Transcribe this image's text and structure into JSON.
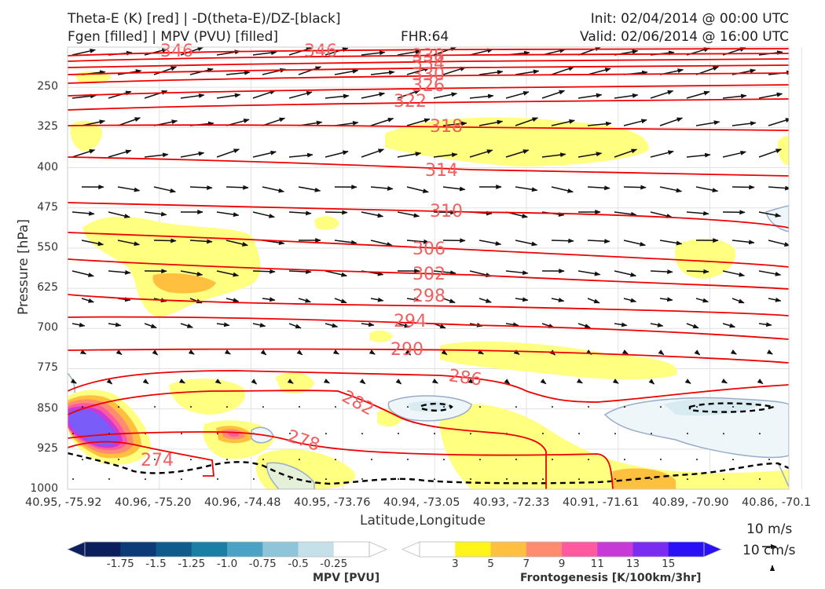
{
  "titles": {
    "left_line1": "Theta-E (K) [red] | -D(theta-E)/DZ-[black]",
    "left_line2": "Fgen [filled] | MPV (PVU) [filled]",
    "center": "FHR:64",
    "right_line1": "Init: 02/04/2014 @ 00:00 UTC",
    "right_line2": "Valid: 02/06/2014 @ 16:00 UTC"
  },
  "chart_data": {
    "type": "cross-section",
    "xlabel": "Latitude,Longitude",
    "ylabel": "Pressure [hPa]",
    "ylim": [
      1000,
      175
    ],
    "y_scale": "pressure (linear, inverted)",
    "y_ticks": [
      250,
      325,
      400,
      475,
      550,
      625,
      700,
      775,
      850,
      925,
      1000
    ],
    "y_tick_labels": [
      "250",
      "325",
      "400",
      "475",
      "550",
      "625",
      "700",
      "775",
      "850",
      "925",
      "1000"
    ],
    "x_tick_labels": [
      "40.95, -75.92",
      "40.96, -75.20",
      "40.96, -74.48",
      "40.95, -73.76",
      "40.94, -73.05",
      "40.93, -72.33",
      "40.91, -71.61",
      "40.89, -70.90",
      "40.86, -70.1"
    ],
    "grid": true,
    "theta_e_contours": {
      "color": "#ee0000",
      "labels": [
        "346",
        "346",
        "338",
        "334",
        "330",
        "326",
        "322",
        "318",
        "314",
        "310",
        "306",
        "302",
        "298",
        "294",
        "290",
        "286",
        "282",
        "278",
        "274"
      ],
      "label_values": [
        346,
        346,
        338,
        334,
        330,
        326,
        322,
        318,
        314,
        310,
        306,
        302,
        298,
        294,
        290,
        286,
        282,
        278,
        274
      ]
    },
    "mpv_colorbar": {
      "title": "MPV [PVU]",
      "tick_labels": [
        "-1.75",
        "-1.5",
        "-1.25",
        "-1.0",
        "-0.75",
        "-0.5",
        "-0.25"
      ],
      "colors": [
        "#0b1f5c",
        "#0d3b78",
        "#0f5c8c",
        "#1a7fa4",
        "#4aa3c4",
        "#8fc5d8",
        "#c6e0ea",
        "#ffffff"
      ]
    },
    "fgen_colorbar": {
      "title": "Frontogenesis [K/100km/3hr]",
      "tick_labels": [
        "3",
        "5",
        "7",
        "9",
        "11",
        "13",
        "15"
      ],
      "colors": [
        "#ffffff",
        "#fff51a",
        "#ffc040",
        "#ff8c70",
        "#ff5aa0",
        "#c83ad8",
        "#7a2cf0",
        "#2a10f5"
      ]
    },
    "reference_vectors": [
      "10 m/s",
      "10 cm/s"
    ]
  }
}
